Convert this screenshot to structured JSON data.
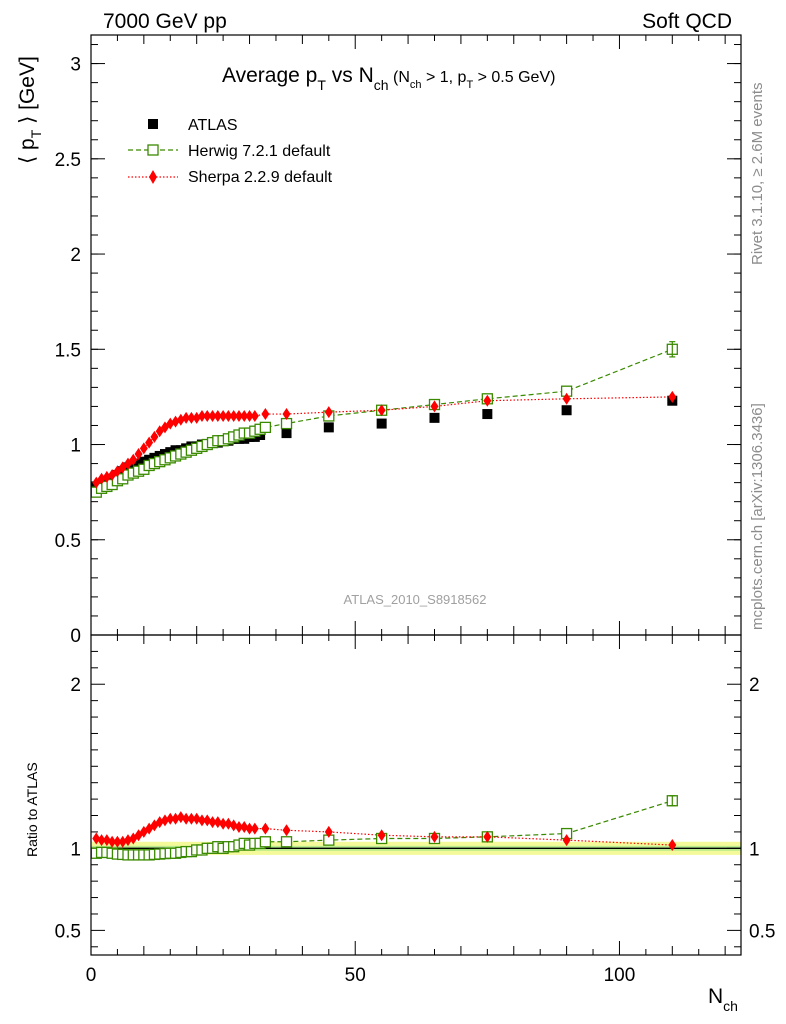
{
  "header": {
    "left": "7000 GeV pp",
    "right": "Soft QCD"
  },
  "side_texts": {
    "rivet": "Rivet 3.1.10, ≥ 2.6M events",
    "mcplots": "mcplots.cern.ch [arXiv:1306.3436]"
  },
  "chart_data": [
    {
      "type": "scatter",
      "panel": "main",
      "title": "Average p_T vs N_ch (N_ch > 1, p_T > 0.5 GeV)",
      "xlabel": "N_ch",
      "ylabel": "⟨ p_T ⟩ [GeV]",
      "watermark": "ATLAS_2010_S8918562",
      "xlim": [
        0,
        123
      ],
      "ylim": [
        0,
        3.15
      ],
      "y_ticks": [
        "0",
        "0.5",
        "1",
        "1.5",
        "2",
        "2.5",
        "3"
      ],
      "y_tick_values": [
        0,
        0.5,
        1,
        1.5,
        2,
        2.5,
        3
      ],
      "legend_position": "top-left",
      "grid": false,
      "colors": {
        "data": "#000000",
        "herwig": "#3a8a00",
        "sherpa": "#ff0000"
      },
      "series": [
        {
          "name": "ATLAS",
          "style": "square",
          "x": [
            1,
            2,
            3,
            4,
            5,
            6,
            7,
            8,
            9,
            10,
            11,
            12,
            13,
            14,
            15,
            16,
            17,
            18,
            19,
            20,
            21,
            22,
            23,
            24,
            25,
            26,
            27,
            28,
            29,
            30,
            31,
            32,
            37,
            45,
            55,
            65,
            75,
            90,
            110
          ],
          "y": [
            0.78,
            0.79,
            0.8,
            0.82,
            0.84,
            0.86,
            0.88,
            0.89,
            0.9,
            0.91,
            0.92,
            0.93,
            0.94,
            0.95,
            0.96,
            0.97,
            0.97,
            0.98,
            0.99,
            0.99,
            1.0,
            1.0,
            1.01,
            1.01,
            1.02,
            1.02,
            1.03,
            1.03,
            1.03,
            1.04,
            1.04,
            1.05,
            1.06,
            1.09,
            1.11,
            1.14,
            1.16,
            1.18,
            1.23
          ]
        },
        {
          "name": "Herwig 7.2.1 default",
          "style": "open-square",
          "x": [
            1,
            2,
            3,
            4,
            5,
            6,
            7,
            8,
            9,
            10,
            11,
            12,
            13,
            14,
            15,
            16,
            17,
            18,
            19,
            20,
            21,
            22,
            23,
            24,
            25,
            26,
            27,
            28,
            29,
            30,
            31,
            32,
            33,
            37,
            45,
            55,
            65,
            75,
            90,
            110
          ],
          "y": [
            0.75,
            0.77,
            0.78,
            0.79,
            0.81,
            0.82,
            0.84,
            0.85,
            0.86,
            0.87,
            0.89,
            0.9,
            0.91,
            0.92,
            0.93,
            0.94,
            0.95,
            0.96,
            0.97,
            0.98,
            0.99,
            1.0,
            1.01,
            1.02,
            1.02,
            1.03,
            1.04,
            1.05,
            1.06,
            1.06,
            1.07,
            1.08,
            1.09,
            1.11,
            1.15,
            1.18,
            1.21,
            1.24,
            1.28,
            1.5
          ]
        },
        {
          "name": "Sherpa 2.2.9 default",
          "style": "diamond",
          "x": [
            1,
            2,
            3,
            4,
            5,
            6,
            7,
            8,
            9,
            10,
            11,
            12,
            13,
            14,
            15,
            16,
            17,
            18,
            19,
            20,
            21,
            22,
            23,
            24,
            25,
            26,
            27,
            28,
            29,
            30,
            31,
            33,
            37,
            45,
            55,
            65,
            75,
            90,
            110
          ],
          "y": [
            0.8,
            0.82,
            0.83,
            0.84,
            0.86,
            0.88,
            0.9,
            0.92,
            0.95,
            0.98,
            1.01,
            1.04,
            1.07,
            1.09,
            1.11,
            1.12,
            1.13,
            1.14,
            1.14,
            1.14,
            1.15,
            1.15,
            1.15,
            1.15,
            1.15,
            1.15,
            1.15,
            1.15,
            1.15,
            1.15,
            1.15,
            1.16,
            1.16,
            1.17,
            1.18,
            1.2,
            1.23,
            1.24,
            1.25
          ]
        }
      ]
    },
    {
      "type": "scatter",
      "panel": "ratio",
      "xlabel": "N_ch",
      "ylabel": "Ratio to ATLAS",
      "xlim": [
        0,
        123
      ],
      "ylim": [
        0.35,
        2.3
      ],
      "x_ticks": [
        "0",
        "50",
        "100"
      ],
      "x_tick_values": [
        0,
        50,
        100
      ],
      "y_ticks": [
        "0.5",
        "1",
        "2"
      ],
      "y_tick_values": [
        0.5,
        1,
        2
      ],
      "reference_line": 1.0,
      "band_inner": [
        0.985,
        1.015
      ],
      "band_outer": [
        0.96,
        1.04
      ],
      "series": [
        {
          "name": "Herwig 7.2.1 default",
          "x": [
            1,
            2,
            3,
            4,
            5,
            6,
            7,
            8,
            9,
            10,
            11,
            12,
            13,
            14,
            15,
            16,
            17,
            18,
            19,
            20,
            21,
            22,
            23,
            24,
            25,
            26,
            27,
            28,
            29,
            30,
            31,
            32,
            33,
            37,
            45,
            55,
            65,
            75,
            90,
            110
          ],
          "y": [
            0.97,
            0.975,
            0.975,
            0.97,
            0.965,
            0.963,
            0.96,
            0.96,
            0.96,
            0.96,
            0.96,
            0.963,
            0.965,
            0.968,
            0.97,
            0.97,
            0.975,
            0.98,
            0.98,
            0.99,
            0.99,
            1.0,
            1.0,
            1.01,
            1.0,
            1.01,
            1.01,
            1.02,
            1.03,
            1.02,
            1.03,
            1.03,
            1.04,
            1.04,
            1.05,
            1.06,
            1.06,
            1.07,
            1.09,
            1.29
          ]
        },
        {
          "name": "Sherpa 2.2.9 default",
          "x": [
            1,
            2,
            3,
            4,
            5,
            6,
            7,
            8,
            9,
            10,
            11,
            12,
            13,
            14,
            15,
            16,
            17,
            18,
            19,
            20,
            21,
            22,
            23,
            24,
            25,
            26,
            27,
            28,
            29,
            30,
            31,
            33,
            37,
            45,
            55,
            65,
            75,
            90,
            110
          ],
          "y": [
            1.06,
            1.05,
            1.05,
            1.04,
            1.04,
            1.04,
            1.05,
            1.06,
            1.08,
            1.1,
            1.12,
            1.14,
            1.16,
            1.17,
            1.18,
            1.18,
            1.19,
            1.18,
            1.18,
            1.18,
            1.17,
            1.17,
            1.16,
            1.16,
            1.15,
            1.15,
            1.14,
            1.13,
            1.13,
            1.12,
            1.12,
            1.12,
            1.11,
            1.1,
            1.08,
            1.07,
            1.07,
            1.05,
            1.02
          ]
        }
      ]
    }
  ]
}
